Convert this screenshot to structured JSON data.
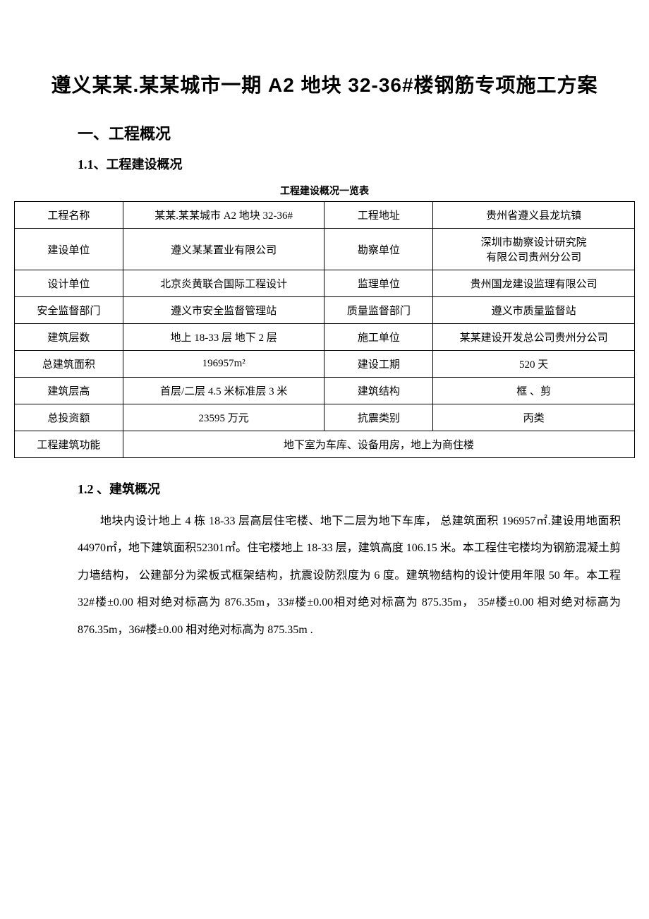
{
  "title": "遵义某某.某某城市一期 A2 地块 32-36#楼钢筋专项施工方案",
  "section1": {
    "heading": "一、工程概况",
    "sub1": {
      "heading": "1.1、工程建设概况",
      "table_title": "工程建设概况一览表",
      "rows": [
        {
          "l1": "工程名称",
          "v1": "某某.某某城市 A2 地块 32-36#",
          "l2": "工程地址",
          "v2": "贵州省遵义县龙坑镇"
        },
        {
          "l1": "建设单位",
          "v1": "遵义某某置业有限公司",
          "l2": "勘察单位",
          "v2": "深圳市勘察设计研究院\n有限公司贵州分公司"
        },
        {
          "l1": "设计单位",
          "v1": "北京炎黄联合国际工程设计",
          "l2": "监理单位",
          "v2": "贵州国龙建设监理有限公司"
        },
        {
          "l1": "安全监督部门",
          "v1": "遵义市安全监督管理站",
          "l2": "质量监督部门",
          "v2": "遵义市质量监督站"
        },
        {
          "l1": "建筑层数",
          "v1": "地上 18-33 层 地下 2 层",
          "l2": "施工单位",
          "v2": "某某建设开发总公司贵州分公司"
        },
        {
          "l1": "总建筑面积",
          "v1": "196957m²",
          "l2": "建设工期",
          "v2": "520 天"
        },
        {
          "l1": "建筑层高",
          "v1": "首层/二层 4.5 米标准层 3 米",
          "l2": "建筑结构",
          "v2": "框 、剪"
        },
        {
          "l1": "总投资额",
          "v1": "23595 万元",
          "l2": "抗震类别",
          "v2": "丙类"
        }
      ],
      "last_row": {
        "l1": "工程建筑功能",
        "v1": "地下室为车库、设备用房，地上为商住楼"
      }
    },
    "sub2": {
      "heading": "1.2 、建筑概况",
      "body": "地块内设计地上 4 栋 18-33 层高层住宅楼、地下二层为地下车库， 总建筑面积 196957㎡.建设用地面积 44970㎡，地下建筑面积52301㎡。住宅楼地上 18-33 层，建筑高度 106.15 米。本工程住宅楼均为钢筋混凝土剪力墙结构， 公建部分为梁板式框架结构，抗震设防烈度为 6 度。建筑物结构的设计使用年限 50 年。本工程 32#楼±0.00 相对绝对标高为 876.35m，33#楼±0.00相对绝对标高为 875.35m， 35#楼±0.00 相对绝对标高为 876.35m，36#楼±0.00 相对绝对标高为 875.35m ."
    }
  }
}
